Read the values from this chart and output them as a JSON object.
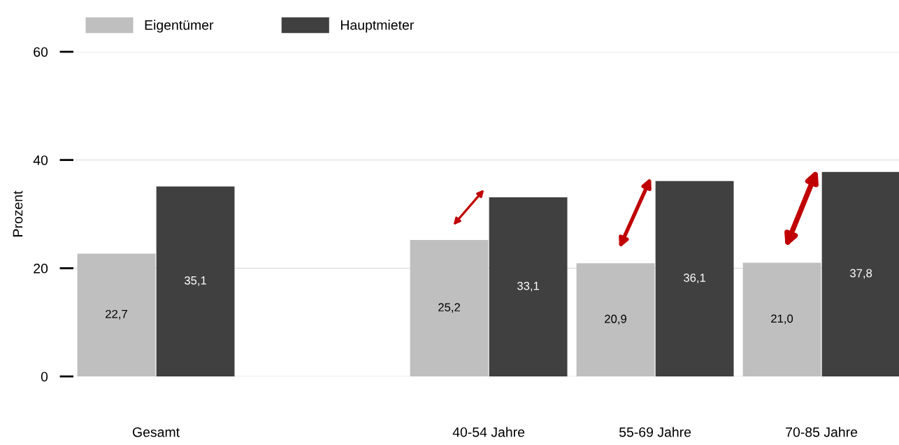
{
  "chart_data": {
    "type": "bar",
    "ylabel": "Prozent",
    "categories": [
      "Gesamt",
      null,
      "40-54 Jahre",
      "55-69 Jahre",
      "70-85 Jahre"
    ],
    "series": [
      {
        "name": "Eigentümer",
        "color": "#bfbfbf",
        "values": [
          22.7,
          null,
          25.2,
          20.9,
          21.0
        ],
        "value_labels": [
          "22,7",
          null,
          "25,2",
          "20,9",
          "21,0"
        ]
      },
      {
        "name": "Hauptmieter",
        "color": "#404040",
        "values": [
          35.1,
          null,
          33.1,
          36.1,
          37.8
        ],
        "value_labels": [
          "35,1",
          null,
          "33,1",
          "36,1",
          "37,8"
        ]
      }
    ],
    "ylim": [
      0,
      60
    ],
    "yticks": [
      0,
      20,
      40,
      60
    ],
    "grid": "y",
    "legend": "top left"
  }
}
